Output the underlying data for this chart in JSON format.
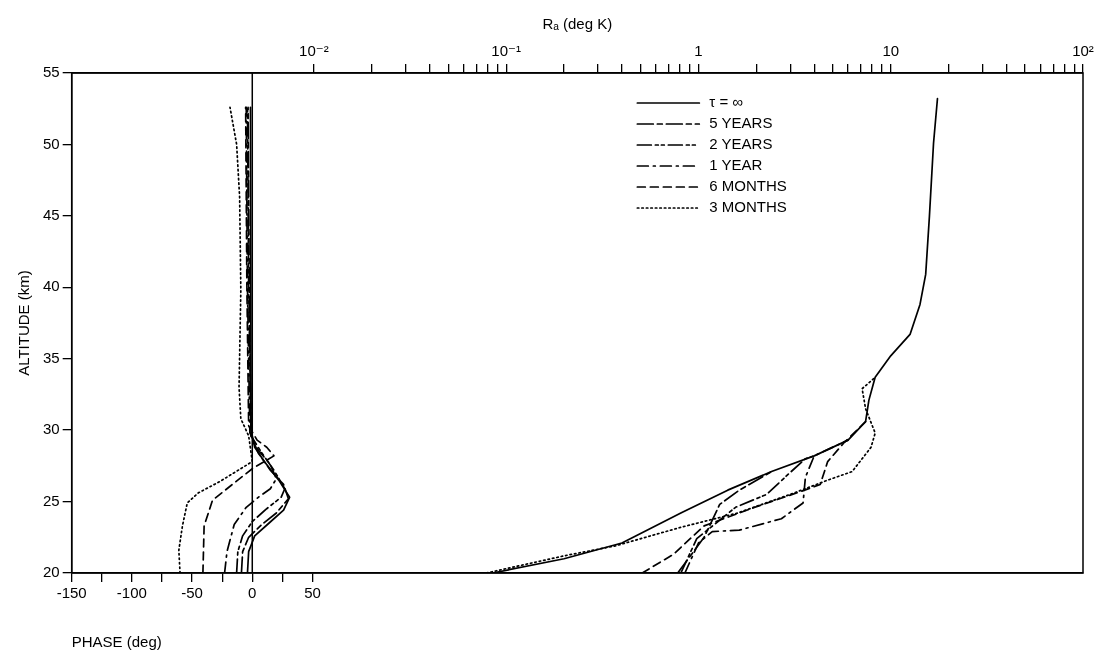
{
  "chart_data": {
    "type": "line",
    "xlabel": "PHASE (deg)",
    "x2label": "Rₐ (deg K)",
    "ylabel": "ALTITUDE (km)",
    "xlim": [
      -150,
      690
    ],
    "xticks": [
      -150,
      {
        "value": -125,
        "label": null
      },
      -100,
      {
        "value": -75,
        "label": null
      },
      -50,
      {
        "value": -25,
        "label": null
      },
      0,
      {
        "value": 25,
        "label": null
      },
      50
    ],
    "x2lim": [
      0.00055,
      100
    ],
    "x2ticks": [
      {
        "value": 0.01,
        "label": "10⁻²"
      },
      {
        "value": 0.02,
        "label": null
      },
      {
        "value": 0.03,
        "label": null
      },
      {
        "value": 0.04,
        "label": null
      },
      {
        "value": 0.05,
        "label": null
      },
      {
        "value": 0.06,
        "label": null
      },
      {
        "value": 0.07,
        "label": null
      },
      {
        "value": 0.08,
        "label": null
      },
      {
        "value": 0.09,
        "label": null
      },
      {
        "value": 0.1,
        "label": "10⁻¹"
      },
      {
        "value": 0.2,
        "label": null
      },
      {
        "value": 0.3,
        "label": null
      },
      {
        "value": 0.4,
        "label": null
      },
      {
        "value": 0.5,
        "label": null
      },
      {
        "value": 0.6,
        "label": null
      },
      {
        "value": 0.7,
        "label": null
      },
      {
        "value": 0.8,
        "label": null
      },
      {
        "value": 0.9,
        "label": null
      },
      1,
      {
        "value": 2,
        "label": null
      },
      {
        "value": 3,
        "label": null
      },
      {
        "value": 4,
        "label": null
      },
      {
        "value": 5,
        "label": null
      },
      {
        "value": 6,
        "label": null
      },
      {
        "value": 7,
        "label": null
      },
      {
        "value": 8,
        "label": null
      },
      {
        "value": 9,
        "label": null
      },
      10,
      {
        "value": 20,
        "label": null
      },
      {
        "value": 30,
        "label": null
      },
      {
        "value": 40,
        "label": null
      },
      {
        "value": 50,
        "label": null
      },
      {
        "value": 60,
        "label": null
      },
      {
        "value": 70,
        "label": null
      },
      {
        "value": 80,
        "label": null
      },
      {
        "value": 90,
        "label": null
      },
      {
        "value": 100,
        "label": "10²"
      }
    ],
    "ylim": [
      20,
      55
    ],
    "yticks": [
      20,
      25,
      30,
      35,
      40,
      45,
      50,
      55
    ],
    "log": "x2",
    "grid": false,
    "legend": "top",
    "marker": "none",
    "ref_lines": [
      {
        "axis": "x",
        "value": 0,
        "color": "#000000",
        "line_style": "solid"
      }
    ],
    "series": [
      {
        "name": "τ = ∞",
        "axis": "x2",
        "color": "#000000",
        "line_style": "solid",
        "x": [
          0.085,
          0.2,
          0.4,
          0.81,
          1.42,
          2.4,
          4.0,
          6.0,
          7.4,
          7.7,
          8.3,
          10,
          12.6,
          14.2,
          15.2,
          15.9,
          16.7,
          17.5
        ],
        "values": [
          20,
          21,
          22.1,
          24.2,
          25.8,
          27.1,
          28.2,
          29.3,
          30.6,
          32.1,
          33.7,
          35.2,
          36.7,
          38.8,
          40.9,
          45,
          50.1,
          53.2
        ]
      },
      {
        "name": "5 YEARS",
        "axis": "x2",
        "color": "#000000",
        "line_style": "dashdot",
        "x": [
          0.78,
          1.07,
          1.29,
          1.63,
          2.4
        ],
        "values": [
          20,
          22.5,
          24.8,
          25.8,
          27.1
        ]
      },
      {
        "name": "2 YEARS",
        "axis": "x2",
        "color": "#000000",
        "line_style": "dashdotdot",
        "x": [
          0.81,
          0.98,
          1.56,
          2.26,
          2.98,
          3.6,
          4.0
        ],
        "values": [
          20,
          22.4,
          24.6,
          25.5,
          27.0,
          28.0,
          28.2
        ]
      },
      {
        "name": "1 YEAR",
        "axis": "x2",
        "color": "#000000",
        "line_style": "longdashdot",
        "x": [
          0.85,
          1.0,
          1.18,
          1.63,
          2.7,
          3.5,
          3.6,
          4.0,
          6.0
        ],
        "values": [
          20,
          22.1,
          22.9,
          23.0,
          23.8,
          24.9,
          26.7,
          28.2,
          29.3
        ]
      },
      {
        "name": "6 MONTHS",
        "axis": "x2",
        "color": "#000000",
        "line_style": "dashed",
        "x": [
          0.51,
          0.74,
          1.07,
          2.06,
          3.4,
          4.3,
          4.7,
          5.7,
          7.4
        ],
        "values": [
          20,
          21.3,
          23.3,
          24.7,
          25.7,
          26.2,
          27.8,
          29.1,
          30.6
        ]
      },
      {
        "name": "3 MONTHS",
        "axis": "x2",
        "color": "#000000",
        "line_style": "dotted",
        "x": [
          0.079,
          0.2,
          0.37,
          0.81,
          1.6,
          3.0,
          4.7,
          6.3,
          7.9,
          8.3,
          7.4,
          7.1,
          8.3
        ],
        "values": [
          20,
          21.2,
          21.9,
          23.2,
          24.2,
          25.5,
          26.5,
          27.1,
          28.8,
          29.8,
          31.5,
          32.9,
          33.7
        ]
      },
      {
        "color": "#000000",
        "line_style": "solid",
        "x": [
          -4,
          -3,
          2,
          14,
          26,
          31,
          22,
          10,
          2,
          -1,
          -1.5
        ],
        "values": [
          20,
          21.5,
          22.6,
          23.5,
          24.4,
          25.3,
          26.5,
          27.8,
          28.8,
          30,
          52.6
        ]
      },
      {
        "color": "#000000",
        "line_style": "dashdot",
        "x": [
          -9,
          -8,
          -3,
          8,
          20,
          30,
          26,
          15,
          5,
          -1,
          -2.5,
          -3.5
        ],
        "values": [
          20,
          21.5,
          22.5,
          23.4,
          24.2,
          25.2,
          26.2,
          27.2,
          28.4,
          29.6,
          40,
          52.6
        ]
      },
      {
        "color": "#000000",
        "line_style": "dashdotdot",
        "x": [
          -13,
          -12,
          -8,
          0,
          12,
          24,
          27,
          18,
          8,
          -1,
          -3,
          -4
        ],
        "values": [
          20,
          21.5,
          22.6,
          23.6,
          24.5,
          25.3,
          25.9,
          27.2,
          28.4,
          29.6,
          40,
          52.6
        ]
      },
      {
        "color": "#000000",
        "line_style": "longdashdot",
        "x": [
          -23,
          -21,
          -15,
          -5,
          5,
          15,
          20,
          15,
          5,
          -2,
          -4,
          -5
        ],
        "values": [
          20,
          21.5,
          23.4,
          24.6,
          25.3,
          25.9,
          26.6,
          27.6,
          28.6,
          29.8,
          40,
          52.6
        ]
      },
      {
        "color": "#000000",
        "line_style": "dashed",
        "x": [
          -41,
          -40,
          -33,
          -15,
          0,
          10,
          18,
          12,
          4,
          -3,
          -4.5,
          -5.5
        ],
        "values": [
          20,
          23.3,
          25.1,
          26.3,
          27.3,
          27.8,
          28.2,
          28.8,
          29.3,
          30.3,
          40.3,
          52.6
        ]
      },
      {
        "color": "#000000",
        "line_style": "dotted",
        "x": [
          -60,
          -61,
          -58,
          -54,
          -45,
          -27,
          0,
          -3,
          -9.5,
          -11,
          -9.5,
          -10.5,
          -13,
          -18.5
        ],
        "values": [
          20,
          21.6,
          23.3,
          24.9,
          25.6,
          26.4,
          27.8,
          29.6,
          30.8,
          33,
          39.8,
          46.3,
          50,
          52.6
        ]
      }
    ]
  }
}
